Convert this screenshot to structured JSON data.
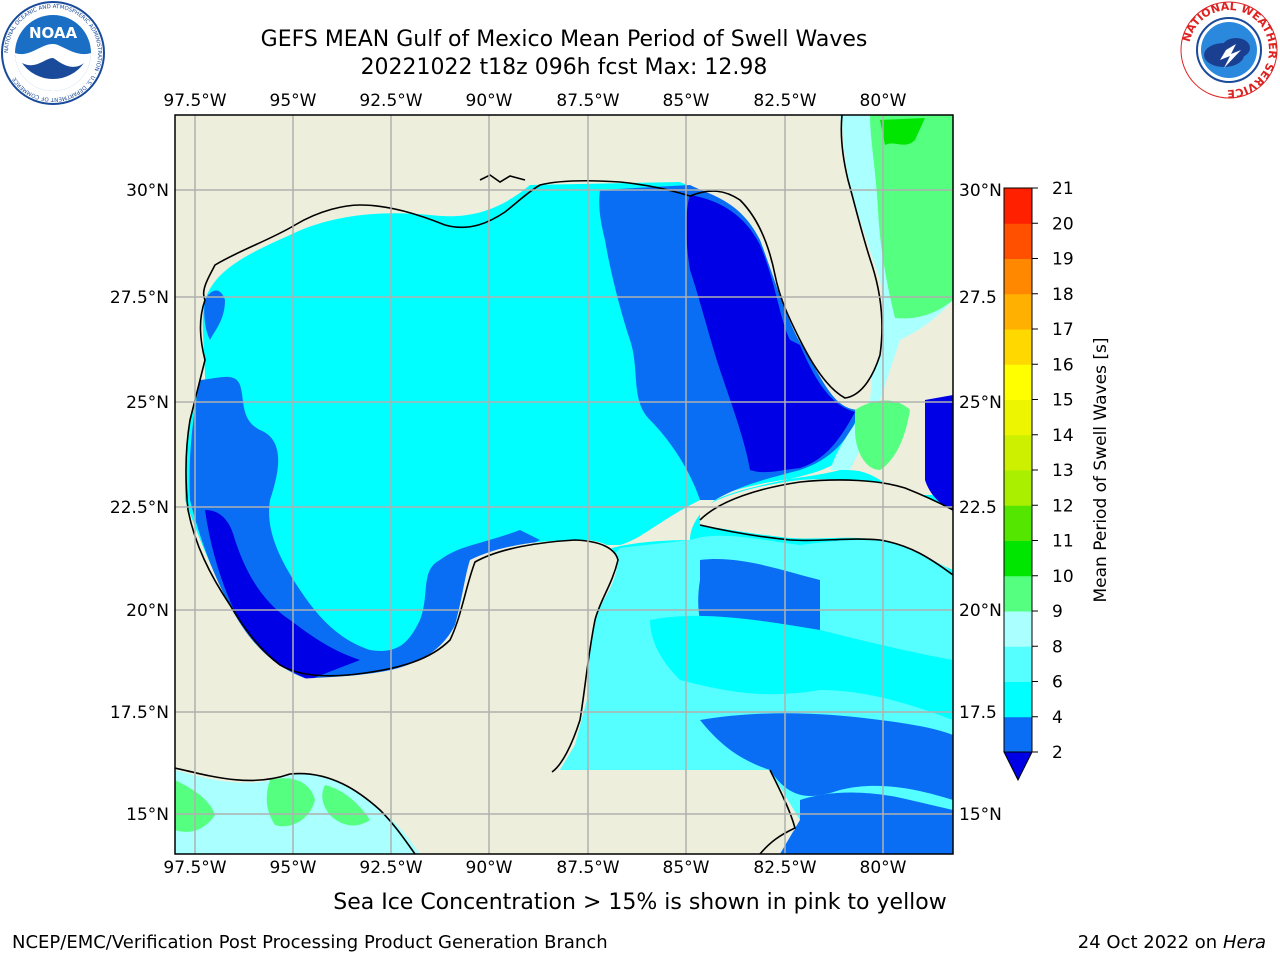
{
  "header": {
    "title_line1": "GEFS MEAN Gulf of Mexico Mean Period of Swell Waves",
    "title_line2": "20221022 t18z 096h fcst   Max: 12.98"
  },
  "logos": {
    "noaa_text": "NOAA",
    "noaa_ring_text": "NATIONAL OCEANIC AND ATMOSPHERIC ADMINISTRATION · U.S. DEPARTMENT OF COMMERCE",
    "nws_ring_text": "NATIONAL WEATHER SERVICE"
  },
  "map": {
    "lon_labels": [
      "97.5°W",
      "95°W",
      "92.5°W",
      "90°W",
      "87.5°W",
      "85°W",
      "82.5°W",
      "80°W"
    ],
    "lat_labels_left": [
      "30°N",
      "27.5°N",
      "25°N",
      "22.5°N",
      "20°N",
      "17.5°N",
      "15°N"
    ],
    "lat_labels_right": [
      "30°N",
      "27.5",
      "25°N",
      "22.5",
      "20°N",
      "17.5",
      "15°N"
    ],
    "land_color": "#eeeedc",
    "grid_color": "#b0b0b0"
  },
  "colorbar": {
    "label": "Mean Period of Swell Waves [s]",
    "ticks": [
      "2",
      "4",
      "6",
      "8",
      "9",
      "10",
      "11",
      "12",
      "13",
      "14",
      "15",
      "16",
      "17",
      "18",
      "19",
      "20",
      "21"
    ],
    "colors": [
      "#0000e6",
      "#0a6ef5",
      "#00ffff",
      "#55ffff",
      "#aaffff",
      "#55ff80",
      "#00e600",
      "#55e600",
      "#aaee00",
      "#ccf000",
      "#eef500",
      "#ffff00",
      "#ffd800",
      "#ffb000",
      "#ff8800",
      "#ff5000",
      "#ff2000",
      "#ff0000"
    ]
  },
  "footer": {
    "sea_ice_note": "Sea Ice Concentration > 15% is shown in pink to yellow",
    "credit": "NCEP/EMC/Verification Post Processing Product Generation Branch",
    "date": "24 Oct 2022 on ",
    "machine": "Hera"
  }
}
